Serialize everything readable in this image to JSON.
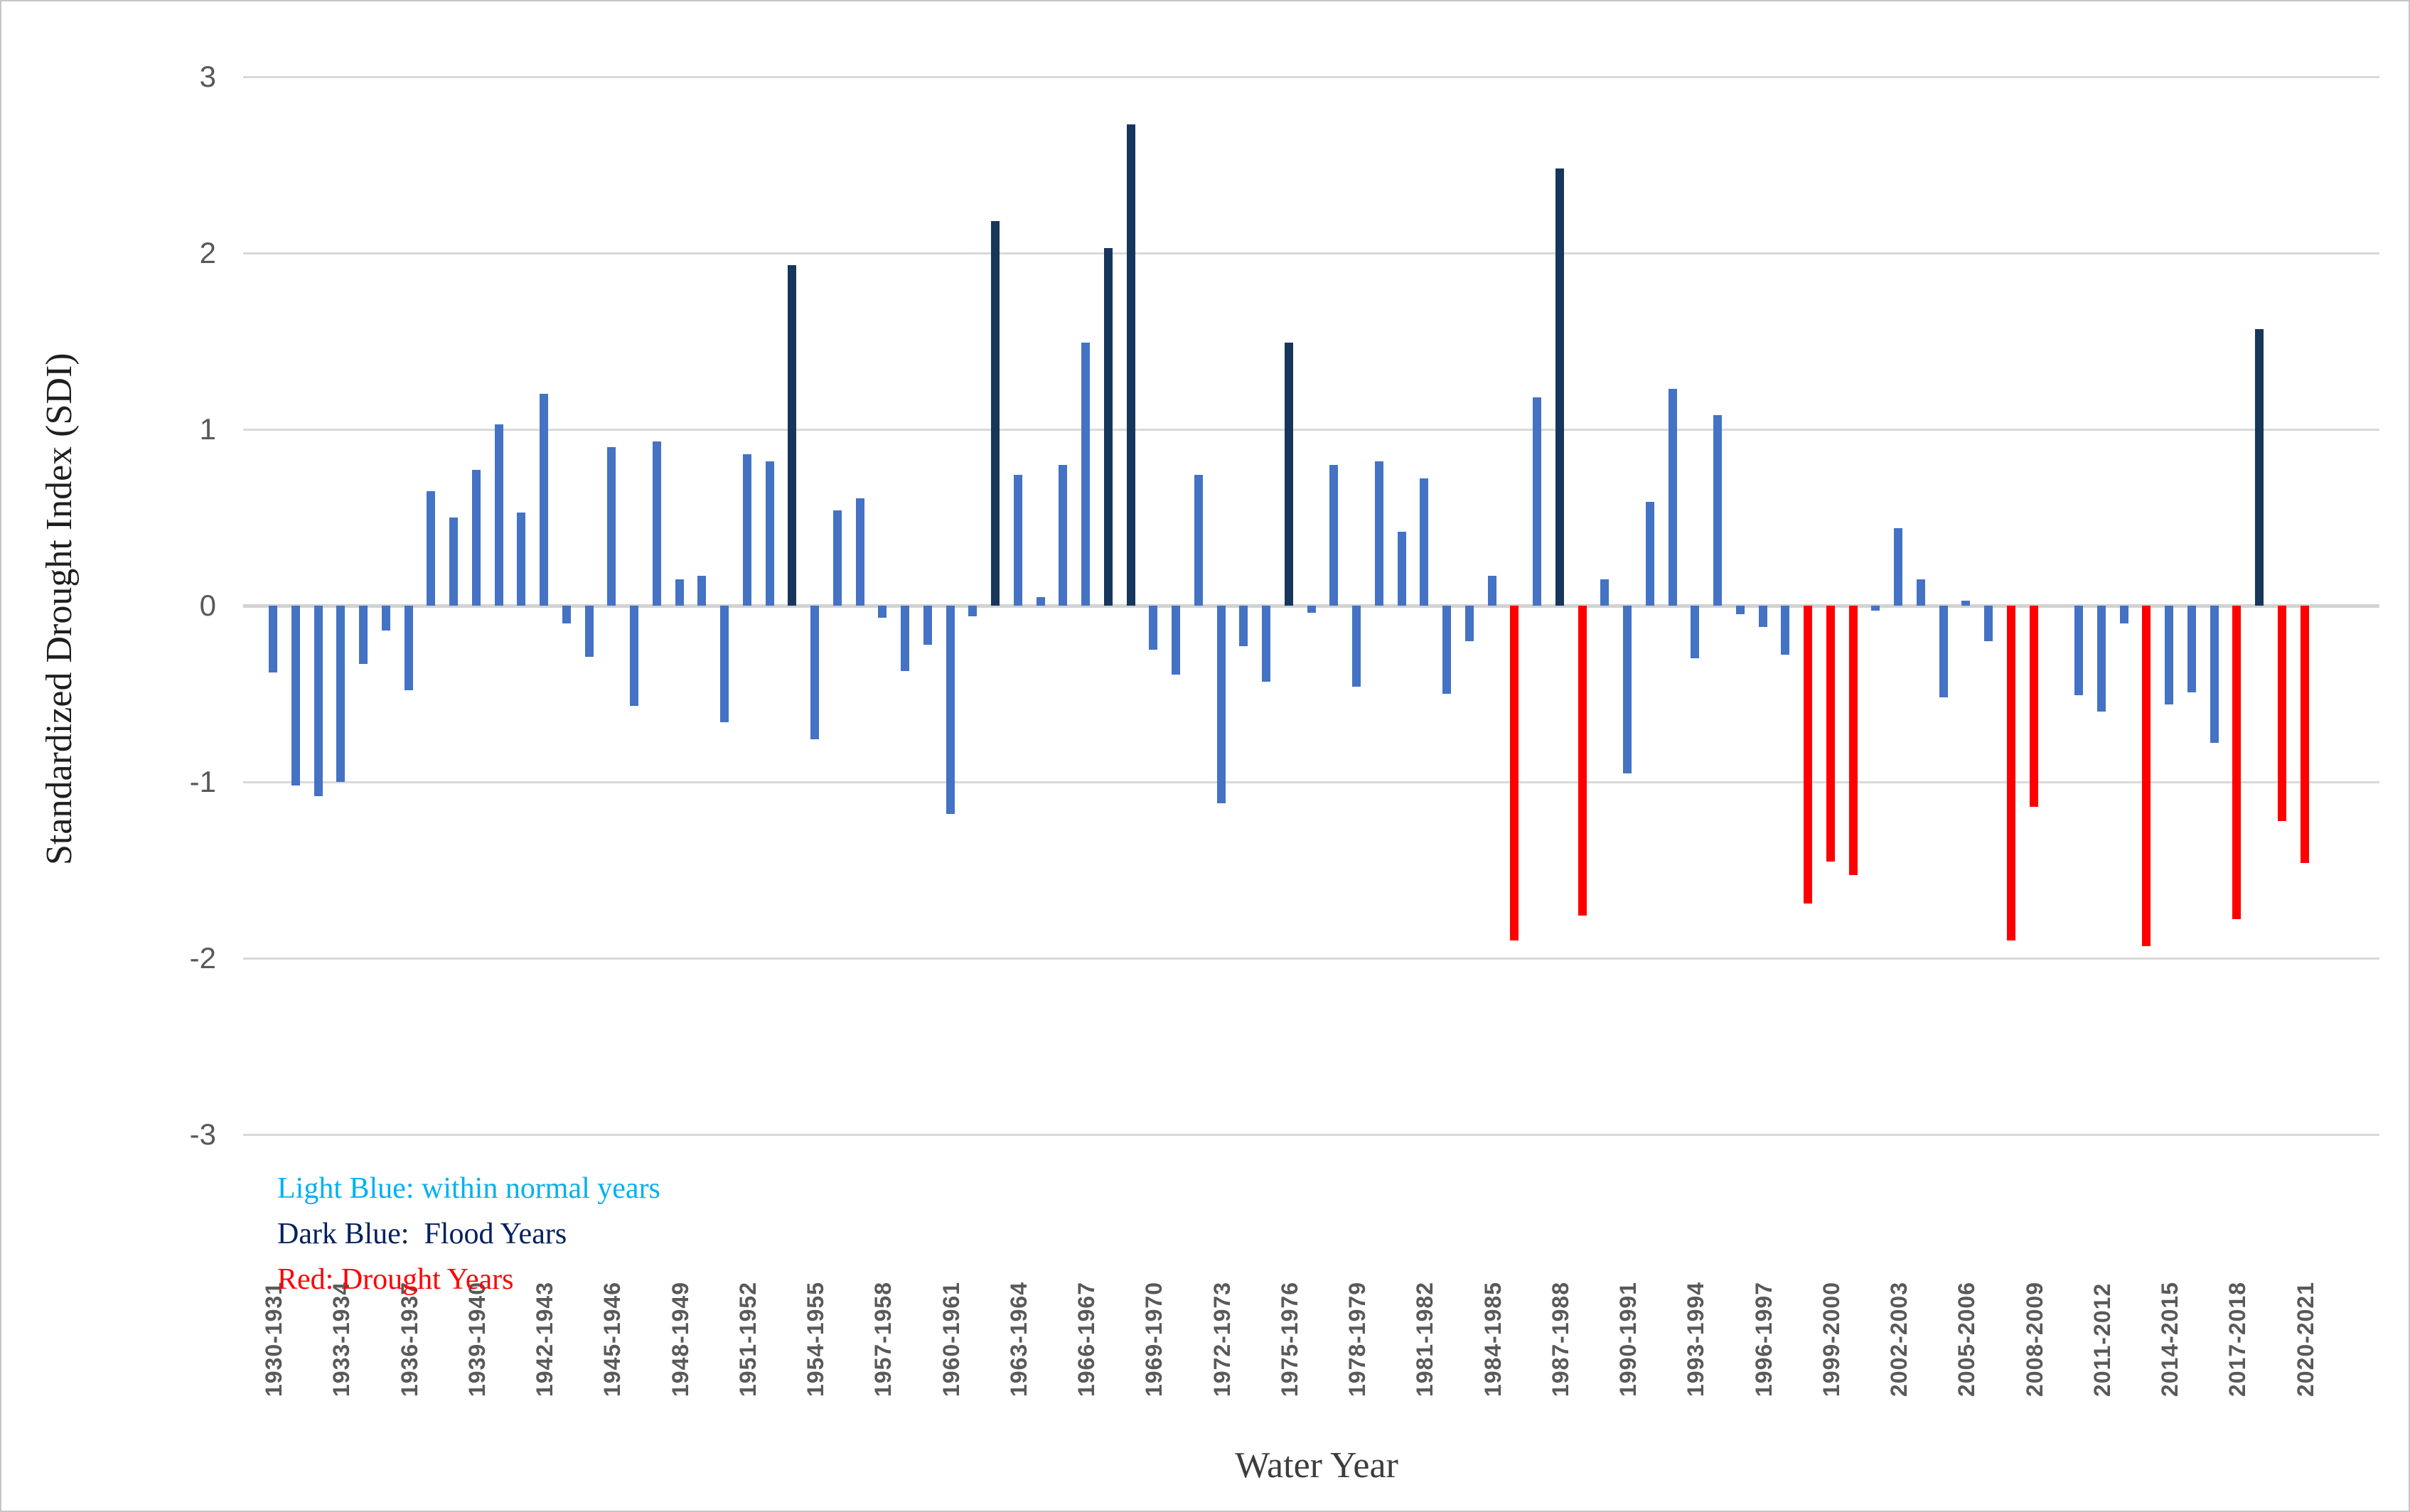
{
  "chart_data": {
    "type": "bar",
    "title": "",
    "xlabel": "Water Year",
    "ylabel": "Standardized Drought Index (SDI)",
    "ylim": [
      -3,
      3
    ],
    "yticks": [
      3,
      2,
      1,
      0,
      -1,
      -2,
      -3
    ],
    "x_tick_step": 3,
    "grid": true,
    "gridline_color": "#d9d9d9",
    "legend_position": "inside-bottom-left",
    "legend": [
      {
        "label": "Light Blue: within normal years",
        "color": "#00B0F0"
      },
      {
        "label": "Dark Blue:  Flood Years",
        "color": "#002060"
      },
      {
        "label": "Red: Drought Years",
        "color": "#FF0000"
      }
    ],
    "bar_colors": {
      "normal": "#4472C4",
      "flood": "#16365C",
      "drought": "#FF0000"
    },
    "categories": [
      "1930-1931",
      "1931-1932",
      "1932-1933",
      "1933-1934",
      "1934-1935",
      "1935-1936",
      "1936-1937",
      "1937-1938",
      "1938-1939",
      "1939-1940",
      "1940-1941",
      "1941-1942",
      "1942-1943",
      "1943-1944",
      "1944-1945",
      "1945-1946",
      "1946-1947",
      "1947-1948",
      "1948-1949",
      "1949-1950",
      "1950-1951",
      "1951-1952",
      "1952-1953",
      "1953-1954",
      "1954-1955",
      "1955-1956",
      "1956-1957",
      "1957-1958",
      "1958-1959",
      "1959-1960",
      "1960-1961",
      "1961-1962",
      "1962-1963",
      "1963-1964",
      "1964-1965",
      "1965-1966",
      "1966-1967",
      "1967-1968",
      "1968-1969",
      "1969-1970",
      "1970-1971",
      "1971-1972",
      "1972-1973",
      "1973-1974",
      "1974-1975",
      "1975-1976",
      "1976-1977",
      "1977-1978",
      "1978-1979",
      "1979-1980",
      "1980-1981",
      "1981-1982",
      "1982-1983",
      "1983-1984",
      "1984-1985",
      "1985-1986",
      "1986-1987",
      "1987-1988",
      "1988-1989",
      "1989-1990",
      "1990-1991",
      "1991-1992",
      "1992-1993",
      "1993-1994",
      "1994-1995",
      "1995-1996",
      "1996-1997",
      "1997-1998",
      "1998-1999",
      "1999-2000",
      "2000-2001",
      "2001-2002",
      "2002-2003",
      "2003-2004",
      "2004-2005",
      "2005-2006",
      "2006-2007",
      "2007-2008",
      "2008-2009",
      "2009-2010",
      "2010-2011",
      "2011-2012",
      "2012-2013",
      "2013-2014",
      "2014-2015",
      "2015-2016",
      "2016-2017",
      "2017-2018",
      "2018-2019",
      "2019-2020",
      "2020-2021"
    ],
    "values": [
      -0.38,
      -1.02,
      -1.08,
      -1.0,
      -0.33,
      -0.14,
      -0.48,
      0.65,
      0.5,
      0.77,
      1.03,
      0.53,
      1.2,
      -0.1,
      -0.29,
      0.9,
      -0.57,
      0.93,
      0.15,
      0.17,
      -0.66,
      0.86,
      0.82,
      1.93,
      -0.76,
      0.54,
      0.61,
      -0.07,
      -0.37,
      -0.22,
      -1.18,
      -0.06,
      2.18,
      0.74,
      0.05,
      0.8,
      1.49,
      2.03,
      2.73,
      -0.25,
      -0.39,
      0.74,
      -1.12,
      -0.23,
      -0.43,
      1.49,
      -0.04,
      0.8,
      -0.46,
      0.82,
      0.42,
      0.72,
      -0.5,
      -0.2,
      0.17,
      -1.9,
      1.18,
      2.48,
      -1.76,
      0.15,
      -0.95,
      0.59,
      1.23,
      -0.3,
      1.08,
      -0.05,
      -0.12,
      -0.28,
      -1.69,
      -1.45,
      -1.53,
      -0.03,
      0.44,
      0.15,
      -0.52,
      0.03,
      -0.2,
      -1.9,
      -1.14,
      0.0,
      -0.51,
      -0.6,
      -0.1,
      -1.93,
      -0.56,
      -0.49,
      -0.78,
      -1.78,
      1.57,
      -1.22,
      -1.46
    ],
    "classes": [
      "normal",
      "normal",
      "normal",
      "normal",
      "normal",
      "normal",
      "normal",
      "normal",
      "normal",
      "normal",
      "normal",
      "normal",
      "normal",
      "normal",
      "normal",
      "normal",
      "normal",
      "normal",
      "normal",
      "normal",
      "normal",
      "normal",
      "normal",
      "flood",
      "normal",
      "normal",
      "normal",
      "normal",
      "normal",
      "normal",
      "normal",
      "normal",
      "flood",
      "normal",
      "normal",
      "normal",
      "normal",
      "flood",
      "flood",
      "normal",
      "normal",
      "normal",
      "normal",
      "normal",
      "normal",
      "flood",
      "normal",
      "normal",
      "normal",
      "normal",
      "normal",
      "normal",
      "normal",
      "normal",
      "normal",
      "drought",
      "normal",
      "flood",
      "drought",
      "normal",
      "normal",
      "normal",
      "normal",
      "normal",
      "normal",
      "normal",
      "normal",
      "normal",
      "drought",
      "drought",
      "drought",
      "normal",
      "normal",
      "normal",
      "normal",
      "normal",
      "normal",
      "drought",
      "drought",
      "normal",
      "normal",
      "normal",
      "normal",
      "drought",
      "normal",
      "normal",
      "normal",
      "drought",
      "flood",
      "drought",
      "drought"
    ]
  }
}
